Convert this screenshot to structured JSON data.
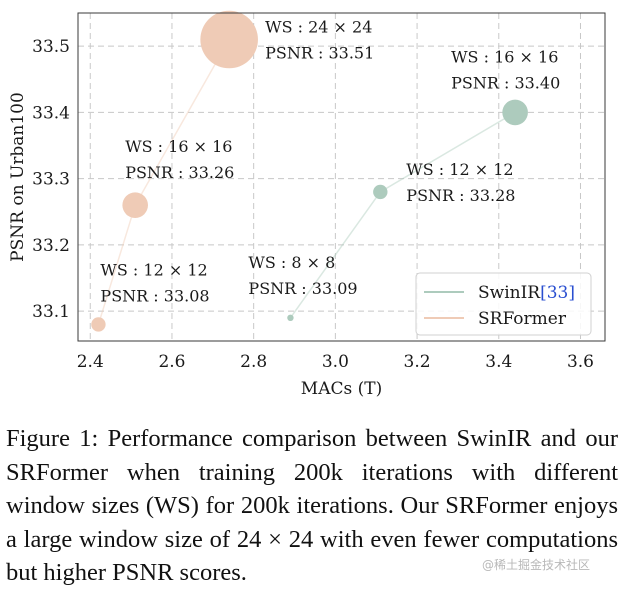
{
  "chart_data": {
    "type": "scatter",
    "xlabel": "MACs (T)",
    "ylabel": "PSNR on Urban100",
    "xlim": [
      2.37,
      3.66
    ],
    "ylim": [
      33.055,
      33.55
    ],
    "xticks": [
      2.4,
      2.6,
      2.8,
      3.0,
      3.2,
      3.4,
      3.6
    ],
    "yticks": [
      33.1,
      33.2,
      33.3,
      33.4,
      33.5
    ],
    "grid": true,
    "legend_position": "bottom-right",
    "series": [
      {
        "name": "SwinIR",
        "cite": "[33]",
        "color": "#adcbbd",
        "points": [
          {
            "x": 2.89,
            "y": 33.09,
            "ws": 8,
            "label_ws": "WS : 8 × 8",
            "label_psnr": "PSNR : 33.09"
          },
          {
            "x": 3.11,
            "y": 33.28,
            "ws": 12,
            "label_ws": "WS : 12 × 12",
            "label_psnr": "PSNR : 33.28"
          },
          {
            "x": 3.44,
            "y": 33.4,
            "ws": 16,
            "label_ws": "WS : 16 × 16",
            "label_psnr": "PSNR : 33.40"
          }
        ]
      },
      {
        "name": "SRFormer",
        "cite": "",
        "color": "#efcbb6",
        "points": [
          {
            "x": 2.42,
            "y": 33.08,
            "ws": 12,
            "label_ws": "WS : 12 × 12",
            "label_psnr": "PSNR : 33.08"
          },
          {
            "x": 2.51,
            "y": 33.26,
            "ws": 16,
            "label_ws": "WS : 16 × 16",
            "label_psnr": "PSNR : 33.26"
          },
          {
            "x": 2.74,
            "y": 33.51,
            "ws": 24,
            "label_ws": "WS : 24 × 24",
            "label_psnr": "PSNR : 33.51"
          }
        ]
      }
    ]
  },
  "caption": "Figure 1: Performance comparison between SwinIR and our SRFormer when training 200k iterations with different window sizes (WS) for 200k iterations. Our SRFormer enjoys a large window size of 24 × 24 with even fewer computations but higher PSNR scores.",
  "watermark": "@稀土掘金技术社区"
}
